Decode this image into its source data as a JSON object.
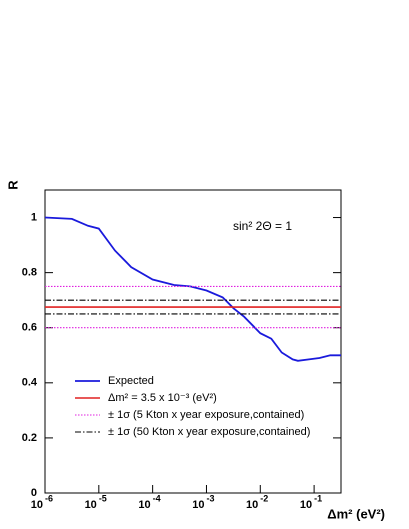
{
  "chart_data": {
    "type": "line",
    "log_x": true,
    "annotation": "sin² 2Θ = 1",
    "x_label": "Δm² (eV²)",
    "y_label": "R",
    "xlim": [
      1e-06,
      0.316
    ],
    "ylim": [
      0,
      1.1
    ],
    "xticks": [
      {
        "value": 1e-06,
        "label": "10",
        "exponent": "-6"
      },
      {
        "value": 1e-05,
        "label": "10",
        "exponent": "-5"
      },
      {
        "value": 0.0001,
        "label": "10",
        "exponent": "-4"
      },
      {
        "value": 0.001,
        "label": "10",
        "exponent": "-3"
      },
      {
        "value": 0.01,
        "label": "10",
        "exponent": "-2"
      },
      {
        "value": 0.1,
        "label": "10",
        "exponent": "-1"
      }
    ],
    "yticks": [
      0,
      0.2,
      0.4,
      0.6,
      0.8,
      1
    ],
    "series": [
      {
        "name": "Expected",
        "color": "#1a1adc",
        "x": [
          1e-06,
          3.16e-06,
          6.3e-06,
          1e-05,
          2e-05,
          4e-05,
          0.0001,
          0.00025,
          0.0005,
          0.001,
          0.002,
          0.0032,
          0.005,
          0.01,
          0.016,
          0.025,
          0.04,
          0.05,
          0.08,
          0.126,
          0.2,
          0.316
        ],
        "values": [
          1.0,
          0.995,
          0.97,
          0.96,
          0.88,
          0.82,
          0.775,
          0.755,
          0.75,
          0.735,
          0.71,
          0.67,
          0.64,
          0.58,
          0.56,
          0.51,
          0.485,
          0.48,
          0.485,
          0.49,
          0.5,
          0.5
        ]
      }
    ],
    "hlines": [
      {
        "name": "Δm² = 3.5 x 10⁻³ (eV²)",
        "color": "#e02020",
        "dash": "solid",
        "values": [
          0.675
        ]
      },
      {
        "name": "± 1σ (5 Kton x year exposure,contained)",
        "color": "#e020e0",
        "dash": "dotted",
        "values": [
          0.75,
          0.6
        ]
      },
      {
        "name": "± 1σ (50 Kton x year exposure,contained)",
        "color": "#000000",
        "dash": "dashdot",
        "values": [
          0.7,
          0.65
        ]
      }
    ]
  }
}
